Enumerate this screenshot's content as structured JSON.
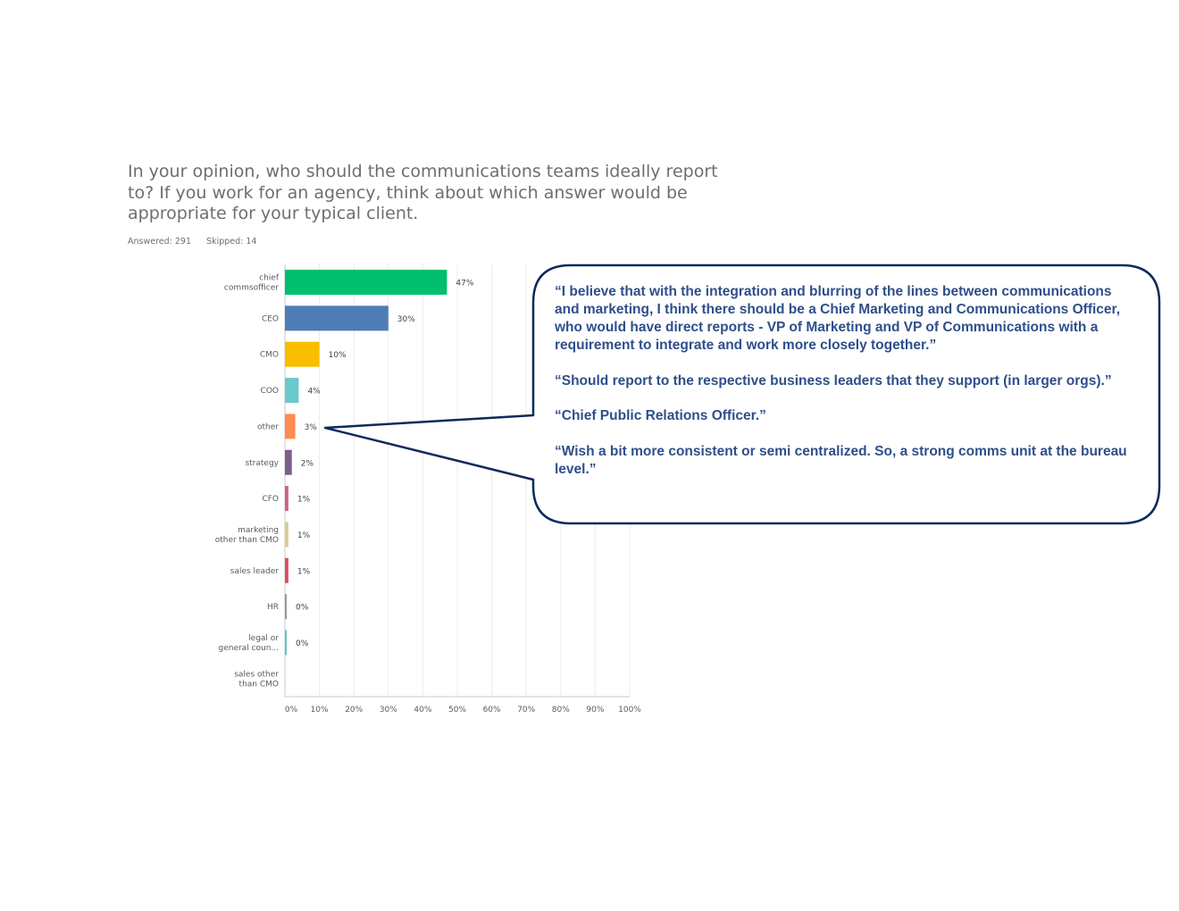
{
  "question": "In your opinion, who should the communications teams ideally report to? If you work for an agency, think about which answer would be appropriate for your typical client.",
  "stats": {
    "answered": "Answered: 291",
    "skipped": "Skipped: 14"
  },
  "callout": {
    "quotes": [
      "“I believe that with the integration and blurring of the lines between communications and marketing, I think there should be a Chief Marketing and Communications Officer, who would have direct reports - VP of Marketing and VP of Communications with a requirement to integrate and work more closely together.”",
      "“Should report to the respective business leaders that they support (in larger orgs).”",
      "“Chief Public Relations Officer.”",
      "“Wish a bit more consistent or semi centralized. So, a strong comms unit at the bureau level.”"
    ],
    "border_color": "#0b2a5c",
    "text_color": "#2e4f8a",
    "points_to": "other"
  },
  "chart_data": {
    "type": "bar",
    "orientation": "horizontal",
    "categories": [
      [
        "chief",
        "commsofficer"
      ],
      [
        "CEO"
      ],
      [
        "CMO"
      ],
      [
        "COO"
      ],
      [
        "other"
      ],
      [
        "strategy"
      ],
      [
        "CFO"
      ],
      [
        "marketing",
        "other than CMO"
      ],
      [
        "sales leader"
      ],
      [
        "HR"
      ],
      [
        "legal or",
        "general coun..."
      ],
      [
        "sales other",
        "than CMO"
      ]
    ],
    "values": [
      47,
      30,
      10,
      4,
      3,
      2,
      1,
      1,
      1,
      0,
      0,
      null
    ],
    "value_labels": [
      "47%",
      "30%",
      "10%",
      "4%",
      "3%",
      "2%",
      "1%",
      "1%",
      "1%",
      "0%",
      "0%",
      ""
    ],
    "colors": [
      "#00bf6f",
      "#507cb6",
      "#f9be00",
      "#6bc8cd",
      "#ff8b4f",
      "#7d5e90",
      "#d25f90",
      "#dacb8f",
      "#db4d5c",
      "#999999",
      "#5ec7c9",
      "#cccccc"
    ],
    "xlim": [
      0,
      100
    ],
    "xticks": [
      "0%",
      "10%",
      "20%",
      "30%",
      "40%",
      "50%",
      "60%",
      "70%",
      "80%",
      "90%",
      "100%"
    ],
    "grid": true
  }
}
